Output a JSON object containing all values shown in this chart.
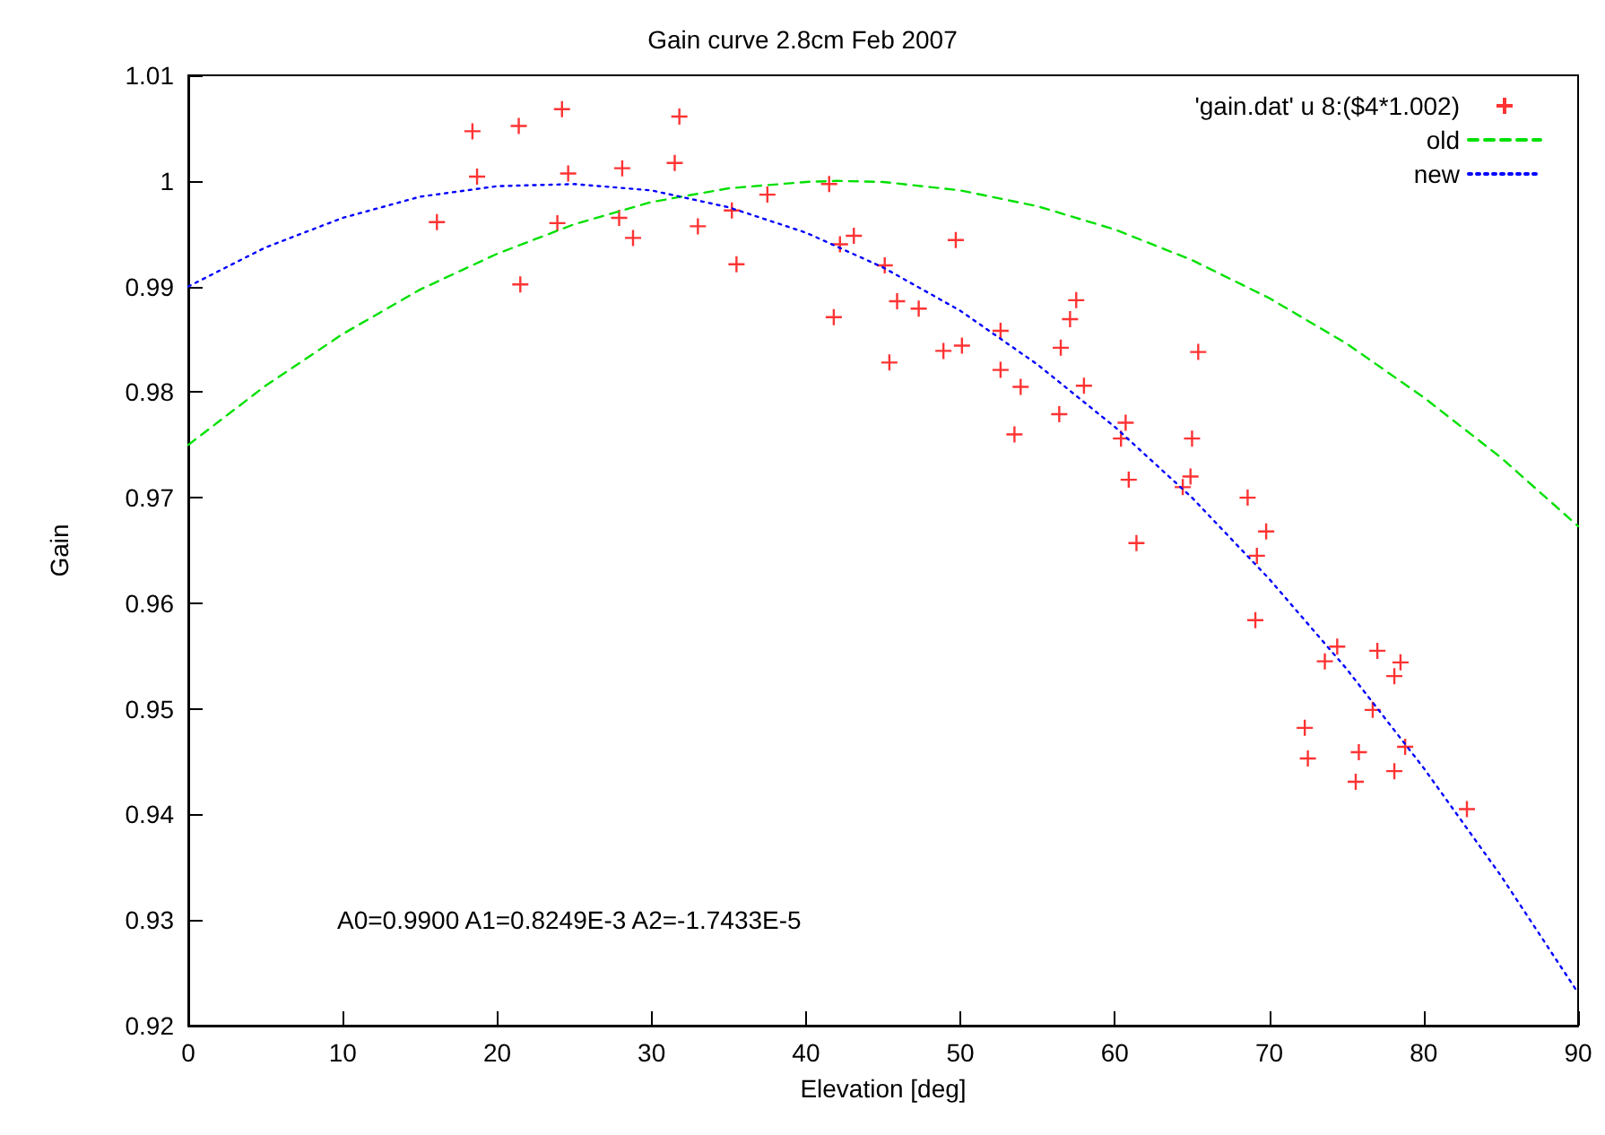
{
  "chart_data": {
    "type": "scatter",
    "title": "Gain curve 2.8cm Feb 2007",
    "xlabel": "Elevation [deg]",
    "ylabel": "Gain",
    "annotations": [
      "A0=0.9900 A1=0.8249E-3 A2=-1.7433E-5"
    ],
    "xlim": [
      0,
      90
    ],
    "xticks": [
      0,
      10,
      20,
      30,
      40,
      50,
      60,
      70,
      80,
      90
    ],
    "ylim": [
      0.92,
      1.01
    ],
    "yticks": [
      0.92,
      0.93,
      0.94,
      0.95,
      0.96,
      0.97,
      0.98,
      0.99,
      1,
      1.01
    ],
    "grid": false,
    "legend": "top right",
    "series": [
      {
        "name": "'gain.dat' u 8:($4*1.002)",
        "color": "#ff0000",
        "marker": "cross",
        "x": [
          16.1,
          18.4,
          18.7,
          21.4,
          21.5,
          24.2,
          24.6,
          23.9,
          28.1,
          27.9,
          28.8,
          31.8,
          31.5,
          33.0,
          35.2,
          35.5,
          37.5,
          41.5,
          42.2,
          43.1,
          41.8,
          45.1,
          45.9,
          47.3,
          45.4,
          48.9,
          50.1,
          49.7,
          57.5,
          57.1,
          52.6,
          56.5,
          65.4,
          52.6,
          53.9,
          58.0,
          56.4,
          53.5,
          60.7,
          60.4,
          65.0,
          60.9,
          64.9,
          64.4,
          61.4,
          68.6,
          69.8,
          69.2,
          69.1,
          74.4,
          73.6,
          77.0,
          78.5,
          78.1,
          76.7,
          72.3,
          72.5,
          75.8,
          75.6,
          78.8,
          78.1,
          82.8
        ],
        "values": [
          0.9961,
          1.0047,
          1.0004,
          1.0052,
          0.9902,
          1.0068,
          1.0007,
          0.996,
          1.0012,
          0.9965,
          0.9946,
          1.0061,
          1.0017,
          0.9957,
          0.9972,
          0.9921,
          0.9987,
          0.9997,
          0.994,
          0.9948,
          0.9871,
          0.992,
          0.9886,
          0.9879,
          0.9828,
          0.9839,
          0.9844,
          0.9944,
          0.9887,
          0.9869,
          0.9858,
          0.9842,
          0.9838,
          0.9821,
          0.9805,
          0.9806,
          0.9779,
          0.976,
          0.9771,
          0.9756,
          0.9756,
          0.9717,
          0.972,
          0.971,
          0.9657,
          0.97,
          0.9668,
          0.9645,
          0.9584,
          0.9559,
          0.9545,
          0.9555,
          0.9544,
          0.9531,
          0.9499,
          0.9482,
          0.9453,
          0.9459,
          0.9431,
          0.9464,
          0.9441,
          0.9405
        ]
      },
      {
        "name": "old",
        "type": "line",
        "color": "#00e000",
        "marker": "none",
        "line_style": "dashed",
        "x": [
          0,
          5,
          10,
          15,
          20,
          25,
          30,
          35,
          40,
          42,
          45,
          50,
          55,
          60,
          65,
          70,
          75,
          80,
          85,
          90
        ],
        "values": [
          0.975,
          0.9806,
          0.9855,
          0.9897,
          0.9931,
          0.9959,
          0.998,
          0.9993,
          0.9999,
          1.0,
          0.9999,
          0.9991,
          0.9976,
          0.9954,
          0.9925,
          0.9889,
          0.9846,
          0.9795,
          0.9738,
          0.9673
        ]
      },
      {
        "name": "new",
        "type": "line",
        "color": "#0000ff",
        "marker": "none",
        "line_style": "dotted",
        "x": [
          0,
          5,
          10,
          15,
          20,
          25,
          30,
          35,
          40,
          45,
          50,
          55,
          60,
          65,
          70,
          75,
          80,
          85,
          90
        ],
        "values": [
          0.99,
          0.9937,
          0.9965,
          0.9985,
          0.9995,
          0.9997,
          0.9991,
          0.9975,
          0.9951,
          0.9918,
          0.9877,
          0.9826,
          0.9767,
          0.97,
          0.9623,
          0.9538,
          0.9444,
          0.9342,
          0.9231
        ]
      }
    ]
  }
}
